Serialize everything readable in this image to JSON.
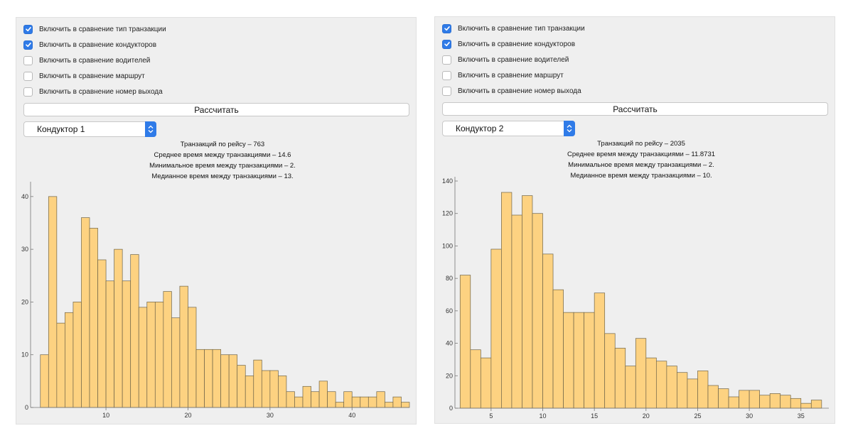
{
  "panels": [
    {
      "checkboxes": [
        {
          "label": "Включить в сравнение тип транзакции",
          "checked": true
        },
        {
          "label": "Включить в сравнение кондукторов",
          "checked": true
        },
        {
          "label": "Включить в сравнение водителей",
          "checked": false
        },
        {
          "label": "Включить в сравнение маршрут",
          "checked": false
        },
        {
          "label": "Включить в сравнение номер выхода",
          "checked": false
        }
      ],
      "calculate_label": "Рассчитать",
      "selected_conductor": "Кондуктор 1",
      "stats": [
        "Транзакций по рейсу – 763",
        "Среднее время между транзакциями – 14.6",
        "Минимальное время между транзакциями – 2.",
        "Медианное время между транзакциями – 13."
      ]
    },
    {
      "checkboxes": [
        {
          "label": "Включить в сравнение тип транзакции",
          "checked": true
        },
        {
          "label": "Включить в сравнение кондукторов",
          "checked": true
        },
        {
          "label": "Включить в сравнение водителей",
          "checked": false
        },
        {
          "label": "Включить в сравнение маршрут",
          "checked": false
        },
        {
          "label": "Включить в сравнение номер выхода",
          "checked": false
        }
      ],
      "calculate_label": "Рассчитать",
      "selected_conductor": "Кондуктор 2",
      "stats": [
        "Транзакций по рейсу – 2035",
        "Среднее время между транзакциями – 11.8731",
        "Минимальное время между транзакциями – 2.",
        "Медианное время между транзакциями – 10."
      ]
    }
  ],
  "colors": {
    "bar_fill": "#fdd281",
    "bar_stroke": "#6f6448",
    "accent": "#2f7be8",
    "panel_bg": "#efefef"
  },
  "icons": {
    "checkbox_checked": "checkmark-icon",
    "select_arrow": "chevron-up-down-icon"
  },
  "chart_data": [
    {
      "type": "bar",
      "bin_width": 1,
      "x_start": 2,
      "values": [
        10,
        40,
        16,
        18,
        20,
        36,
        34,
        28,
        24,
        30,
        24,
        29,
        19,
        20,
        20,
        22,
        17,
        23,
        19,
        11,
        11,
        11,
        10,
        10,
        8,
        6,
        9,
        7,
        7,
        6,
        3,
        2,
        4,
        3,
        5,
        3,
        1,
        3,
        2,
        2,
        2,
        3,
        1,
        2,
        1
      ],
      "xlim": [
        1.5,
        47
      ],
      "ylim": [
        0,
        42
      ],
      "xticks": [
        10,
        20,
        30,
        40
      ],
      "yticks": [
        0,
        10,
        20,
        30,
        40
      ],
      "title": "",
      "xlabel": "",
      "ylabel": ""
    },
    {
      "type": "bar",
      "bin_width": 1,
      "x_start": 2,
      "values": [
        82,
        36,
        31,
        98,
        133,
        119,
        131,
        120,
        95,
        73,
        59,
        59,
        59,
        71,
        46,
        37,
        26,
        43,
        31,
        29,
        26,
        22,
        18,
        23,
        14,
        12,
        7,
        11,
        11,
        8,
        9,
        8,
        6,
        3,
        5
      ],
      "xlim": [
        1.5,
        37.7
      ],
      "ylim": [
        0,
        140
      ],
      "xticks": [
        5,
        10,
        15,
        20,
        25,
        30,
        35
      ],
      "yticks": [
        0,
        20,
        40,
        60,
        80,
        100,
        120,
        140
      ],
      "title": "",
      "xlabel": "",
      "ylabel": ""
    }
  ]
}
